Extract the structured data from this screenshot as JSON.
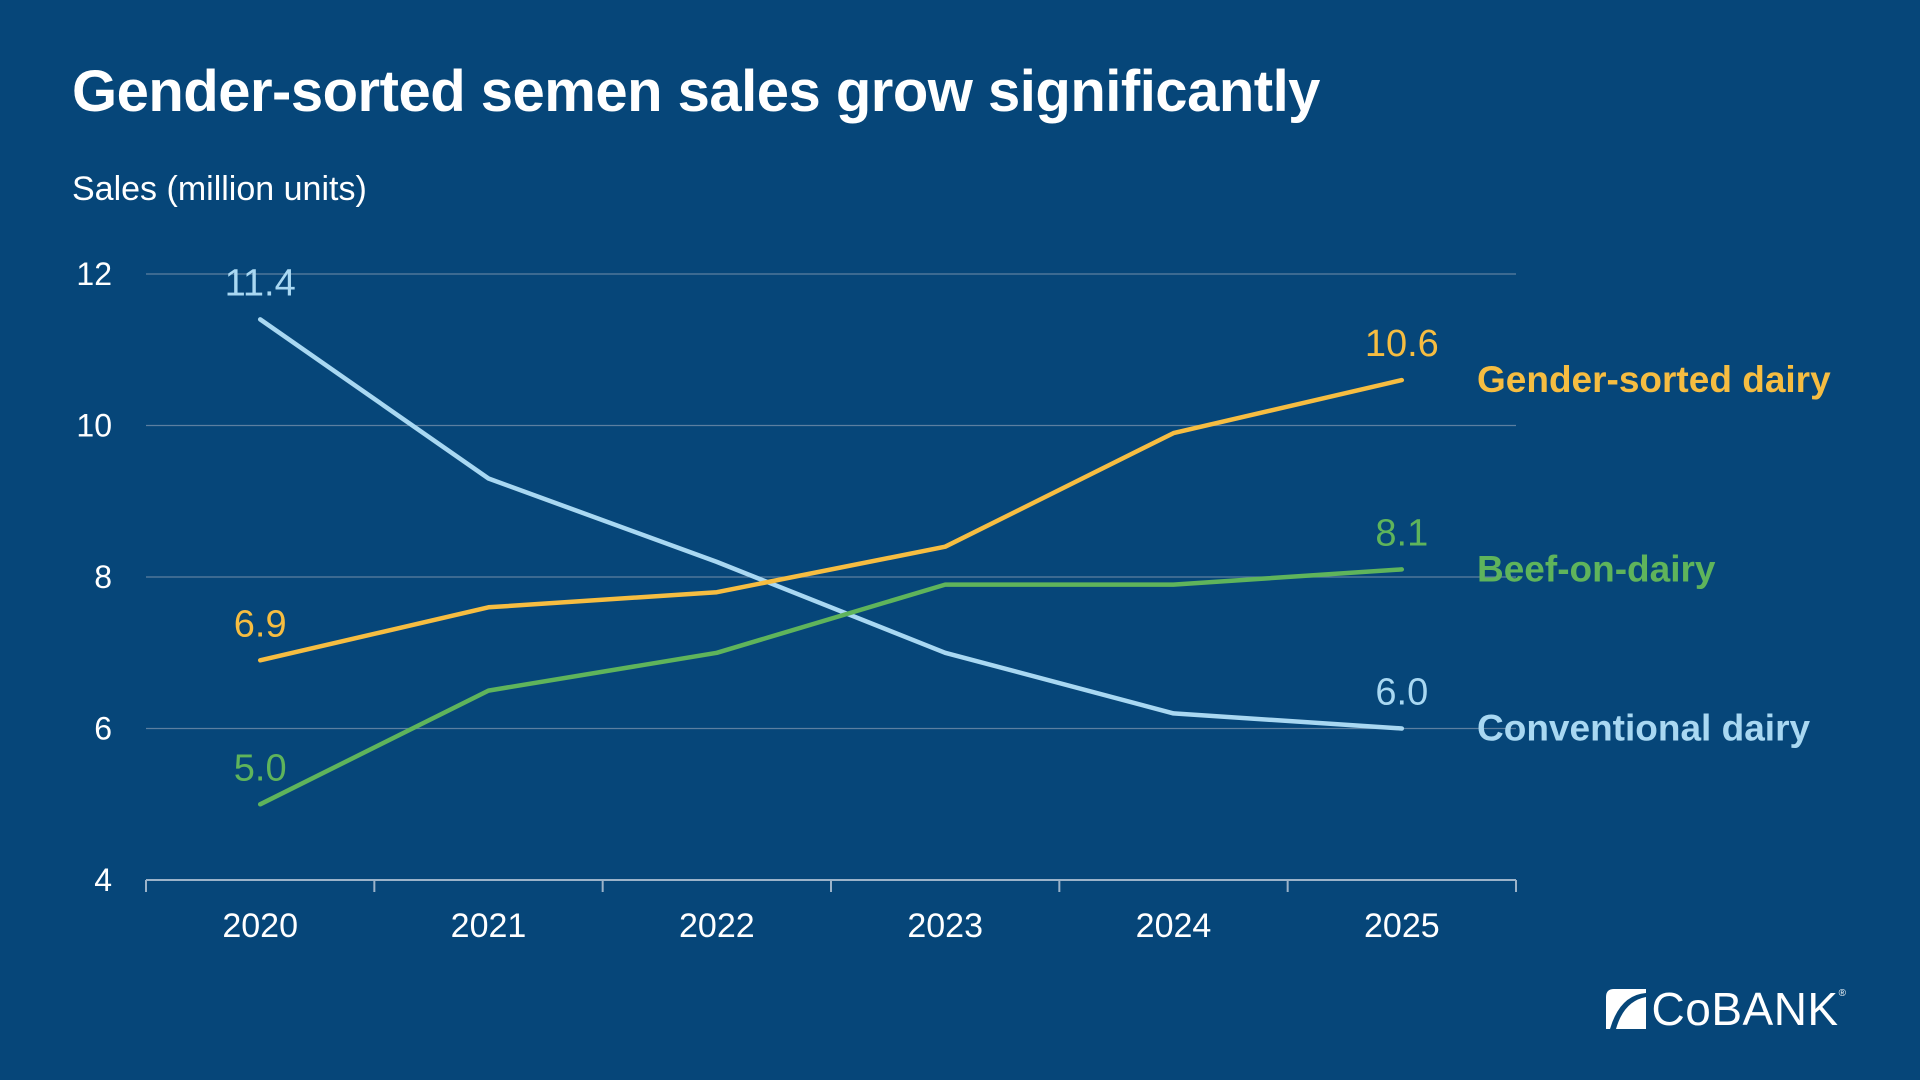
{
  "chart_data": {
    "type": "line",
    "title": "Gender-sorted semen sales grow significantly",
    "ylabel": "Sales (million units)",
    "xlabel": "",
    "x": [
      "2020",
      "2021",
      "2022",
      "2023",
      "2024",
      "2025"
    ],
    "ylim": [
      4,
      12
    ],
    "yticks": [
      4,
      6,
      8,
      10,
      12
    ],
    "grid": true,
    "legend": "direct labels at right end of lines",
    "series": [
      {
        "name": "Gender-sorted dairy",
        "color": "#f6bd41",
        "values": [
          6.9,
          7.6,
          7.8,
          8.4,
          9.9,
          10.6
        ],
        "labels": {
          "start": "6.9",
          "end": "10.6"
        }
      },
      {
        "name": "Beef-on-dairy",
        "color": "#5fb45b",
        "values": [
          5.0,
          6.5,
          7.0,
          7.9,
          7.9,
          8.1
        ],
        "labels": {
          "start": "5.0",
          "end": "8.1"
        }
      },
      {
        "name": "Conventional dairy",
        "color": "#a9d8f2",
        "values": [
          11.4,
          9.3,
          8.2,
          7.0,
          6.2,
          6.0
        ],
        "labels": {
          "start": "11.4",
          "end": "6.0"
        }
      }
    ]
  },
  "colors": {
    "background": "#064679",
    "gridline": "#5c7fa0",
    "axis": "#9bb3c9",
    "text": "#ffffff"
  },
  "brand": {
    "logo_icon": "cobank-logo-icon",
    "name": "CoBANK",
    "registered": "®"
  }
}
